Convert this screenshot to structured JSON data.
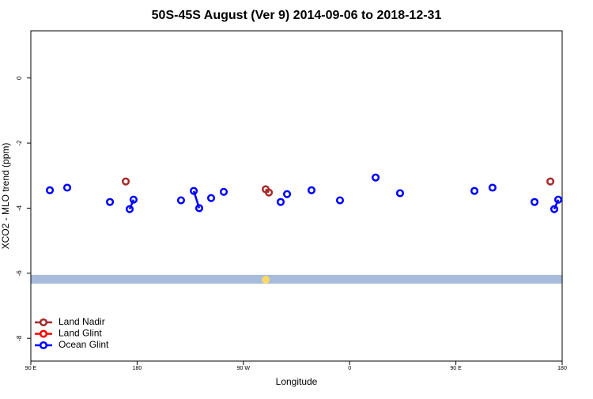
{
  "chart_data": {
    "type": "line",
    "title": "50S-45S August (Ver 9)   2014-09-06 to 2018-12-31",
    "x_label": "Longitude",
    "y_label": "XCO2 - MLO trend (ppm)",
    "xlim": [
      90,
      540
    ],
    "ylim": [
      -8.7,
      1.45
    ],
    "xticks": [
      {
        "value": 90,
        "label": "90 E"
      },
      180,
      {
        "value": 270,
        "label": "90 W"
      },
      {
        "value": 360,
        "label": "0"
      },
      {
        "value": 450,
        "label": "90 E"
      },
      {
        "value": 540,
        "label": "180"
      }
    ],
    "yticks": [
      0,
      -2,
      -4,
      -6,
      -8
    ],
    "band": [
      -6.05,
      -6.32
    ],
    "band_color": "#a7bcdc",
    "legend": "bottom-left",
    "series": [
      {
        "name": "Land Nadir",
        "color": "#a52a2a",
        "x": [
          170.4,
          null,
          288.9,
          291.6,
          null,
          530
        ],
        "values": [
          -3.18,
          null,
          -3.42,
          -3.52,
          null,
          -3.18
        ]
      },
      {
        "name": "Land Glint",
        "color": "#ff0000",
        "x": [],
        "values": []
      },
      {
        "name": "Ocean Glint",
        "color": "#0000ff",
        "x": [
          106.1,
          null,
          120.8,
          null,
          157,
          null,
          173.7,
          177,
          null,
          217.2,
          null,
          228,
          232.6,
          null,
          242.7,
          null,
          253.4,
          null,
          301.6,
          null,
          307,
          null,
          327.7,
          null,
          351.8,
          null,
          382,
          null,
          402.7,
          null,
          465.7,
          null,
          481,
          null,
          516.6,
          null,
          533.3,
          536.7
        ],
        "values": [
          -3.45,
          null,
          -3.37,
          null,
          -3.81,
          null,
          -4.03,
          -3.74,
          null,
          -3.76,
          null,
          -3.47,
          -4.0,
          null,
          -3.69,
          null,
          -3.5,
          null,
          -3.81,
          null,
          -3.57,
          null,
          -3.45,
          null,
          -3.76,
          null,
          -3.06,
          null,
          -3.54,
          null,
          -3.47,
          null,
          -3.37,
          null,
          -3.81,
          null,
          -4.03,
          -3.74
        ]
      }
    ]
  }
}
